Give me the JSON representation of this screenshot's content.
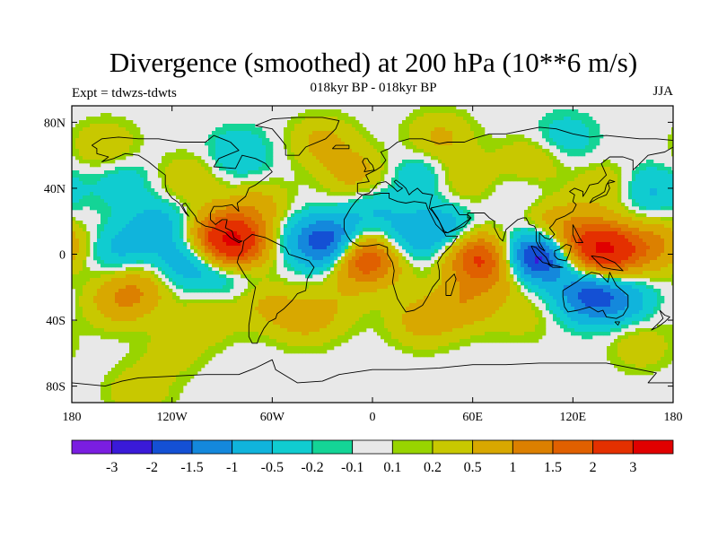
{
  "chart_data": {
    "type": "heatmap",
    "title": "Divergence (smoothed) at 200 hPa (10**6 m/s)",
    "left_label": "Expt = tdwzs-tdwts",
    "center_label": "018kyr BP - 018kyr BP",
    "right_label": "JJA",
    "projection": "cylindrical equidistant",
    "xlim": [
      -180,
      180
    ],
    "ylim": [
      -90,
      90
    ],
    "x_ticks": [
      {
        "value": -180,
        "label": "180"
      },
      {
        "value": -120,
        "label": "120W"
      },
      {
        "value": -60,
        "label": "60W"
      },
      {
        "value": 0,
        "label": "0"
      },
      {
        "value": 60,
        "label": "60E"
      },
      {
        "value": 120,
        "label": "120E"
      },
      {
        "value": 180,
        "label": "180"
      }
    ],
    "y_ticks": [
      {
        "value": 80,
        "label": "80N"
      },
      {
        "value": 40,
        "label": "40N"
      },
      {
        "value": 0,
        "label": "0"
      },
      {
        "value": -40,
        "label": "40S"
      },
      {
        "value": -80,
        "label": "80S"
      }
    ],
    "colorbar": {
      "colors": [
        "#7a1ee0",
        "#3a1ad8",
        "#1450d4",
        "#1488dc",
        "#10b4dc",
        "#10ccd0",
        "#14d496",
        "#e8e8e8",
        "#98d400",
        "#c8c800",
        "#d8a800",
        "#dc8000",
        "#e06000",
        "#e43000",
        "#e00000"
      ],
      "boundaries": [
        {
          "value": -3,
          "label": "-3"
        },
        {
          "value": -2,
          "label": "-2"
        },
        {
          "value": -1.5,
          "label": "-1.5"
        },
        {
          "value": -1,
          "label": "-1"
        },
        {
          "value": -0.5,
          "label": "-0.5"
        },
        {
          "value": -0.2,
          "label": "-0.2"
        },
        {
          "value": -0.1,
          "label": "-0.1"
        },
        {
          "value": 0.1,
          "label": "0.1"
        },
        {
          "value": 0.2,
          "label": "0.2"
        },
        {
          "value": 0.5,
          "label": "0.5"
        },
        {
          "value": 1,
          "label": "1"
        },
        {
          "value": 1.5,
          "label": "1.5"
        },
        {
          "value": 2,
          "label": "2"
        },
        {
          "value": 3,
          "label": "3"
        }
      ]
    },
    "features": [
      {
        "lon": -82,
        "lat": 6,
        "value": 2.5
      },
      {
        "lon": -92,
        "lat": 12,
        "value": 1.2
      },
      {
        "lon": -68,
        "lat": 28,
        "value": 0.7
      },
      {
        "lon": -152,
        "lat": 2,
        "value": -0.6
      },
      {
        "lon": -128,
        "lat": 18,
        "value": -0.7
      },
      {
        "lon": -110,
        "lat": -5,
        "value": -0.8
      },
      {
        "lon": -85,
        "lat": -10,
        "value": -0.6
      },
      {
        "lon": -48,
        "lat": 12,
        "value": -0.4
      },
      {
        "lon": -25,
        "lat": 6,
        "value": -2.2
      },
      {
        "lon": -8,
        "lat": -2,
        "value": 2.1
      },
      {
        "lon": 8,
        "lat": -5,
        "value": 0.5
      },
      {
        "lon": 20,
        "lat": 8,
        "value": -0.7
      },
      {
        "lon": 44,
        "lat": 15,
        "value": -0.8
      },
      {
        "lon": 63,
        "lat": -2,
        "value": 2.0
      },
      {
        "lon": 80,
        "lat": -12,
        "value": 0.6
      },
      {
        "lon": 98,
        "lat": -2,
        "value": -2.5
      },
      {
        "lon": 108,
        "lat": 18,
        "value": 0.8
      },
      {
        "lon": 142,
        "lat": 2,
        "value": 2.3
      },
      {
        "lon": 128,
        "lat": 6,
        "value": 1.3
      },
      {
        "lon": 170,
        "lat": 5,
        "value": 1.0
      },
      {
        "lon": 130,
        "lat": -25,
        "value": -1.6
      },
      {
        "lon": 150,
        "lat": -28,
        "value": -0.7
      },
      {
        "lon": 90,
        "lat": -38,
        "value": 0.3
      },
      {
        "lon": -142,
        "lat": -22,
        "value": 0.9
      },
      {
        "lon": -155,
        "lat": -30,
        "value": 0.5
      },
      {
        "lon": -100,
        "lat": -40,
        "value": 0.4
      },
      {
        "lon": -65,
        "lat": -30,
        "value": 0.5
      },
      {
        "lon": -40,
        "lat": -40,
        "value": 0.6
      },
      {
        "lon": -20,
        "lat": -30,
        "value": 0.3
      },
      {
        "lon": 30,
        "lat": -40,
        "value": 0.7
      },
      {
        "lon": 55,
        "lat": -30,
        "value": 0.8
      },
      {
        "lon": -10,
        "lat": 48,
        "value": 0.7
      },
      {
        "lon": 0,
        "lat": 28,
        "value": -0.5
      },
      {
        "lon": 30,
        "lat": 48,
        "value": -0.5
      },
      {
        "lon": 55,
        "lat": 45,
        "value": 0.5
      },
      {
        "lon": 90,
        "lat": 40,
        "value": -0.3
      },
      {
        "lon": 95,
        "lat": 55,
        "value": 0.6
      },
      {
        "lon": 140,
        "lat": 40,
        "value": 0.5
      },
      {
        "lon": 165,
        "lat": 38,
        "value": -0.6
      },
      {
        "lon": -150,
        "lat": 45,
        "value": -0.4
      },
      {
        "lon": -110,
        "lat": 45,
        "value": 0.5
      },
      {
        "lon": -160,
        "lat": 65,
        "value": 0.5
      },
      {
        "lon": -80,
        "lat": 60,
        "value": -0.5
      },
      {
        "lon": -30,
        "lat": 68,
        "value": 0.6
      },
      {
        "lon": 40,
        "lat": 70,
        "value": 0.6
      },
      {
        "lon": 115,
        "lat": 70,
        "value": -0.4
      },
      {
        "lon": -120,
        "lat": -60,
        "value": 0.3
      },
      {
        "lon": 160,
        "lat": -55,
        "value": 0.4
      },
      {
        "lon": -140,
        "lat": -83,
        "value": 0.4
      }
    ]
  }
}
